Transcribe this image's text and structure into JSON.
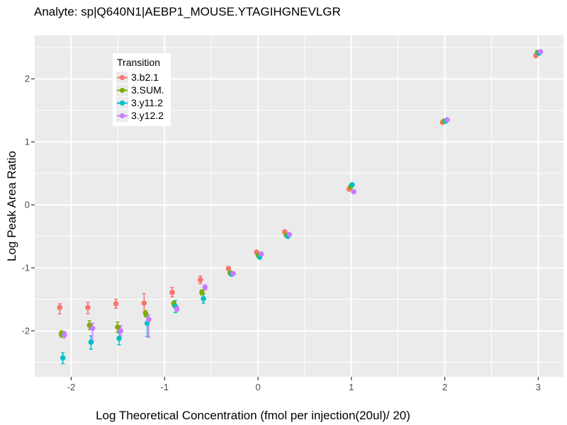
{
  "title": "Analyte: sp|Q640N1|AEBP1_MOUSE.YTAGIHGNEVLGR",
  "chart_data": {
    "type": "scatter",
    "title": "Analyte: sp|Q640N1|AEBP1_MOUSE.YTAGIHGNEVLGR",
    "xlabel": "Log Theoretical Concentration (fmol per injection(20ul)/ 20)",
    "ylabel": "Log Peak Area Ratio",
    "xlim": [
      -2.39,
      3.27
    ],
    "ylim": [
      -2.73,
      2.69
    ],
    "x_ticks": [
      -2,
      -1,
      0,
      1,
      2,
      3
    ],
    "y_ticks": [
      -2,
      -1,
      0,
      1,
      2
    ],
    "grid": "major+minor on, white on gray panel",
    "panel_bg": "#EBEBEB",
    "grid_color": "#FFFFFF",
    "tick_color": "#333333",
    "legend": {
      "title": "Transition",
      "position": "inside-top-left"
    },
    "x": [
      -2.097,
      -1.796,
      -1.495,
      -1.194,
      -0.893,
      -0.592,
      -0.291,
      0.01,
      0.311,
      1.0,
      2.0,
      3.0
    ],
    "series": [
      {
        "name": "3.b2.1",
        "color": "#F8766D",
        "dodge": -0.025,
        "y": [
          -1.63,
          -1.63,
          -1.57,
          -1.56,
          -1.39,
          -1.19,
          -1.01,
          -0.75,
          -0.43,
          0.25,
          1.31,
          2.37
        ],
        "err_lo": [
          -1.73,
          -1.73,
          -1.64,
          -1.7,
          -1.46,
          -1.25,
          -1.04,
          -0.77,
          -0.45,
          0.24,
          1.3,
          2.36
        ],
        "err_hi": [
          -1.57,
          -1.55,
          -1.5,
          -1.41,
          -1.31,
          -1.13,
          -0.98,
          -0.73,
          -0.41,
          0.26,
          1.32,
          2.38
        ]
      },
      {
        "name": "3.SUM.",
        "color": "#7CAE00",
        "dodge": -0.008,
        "y": [
          -2.05,
          -1.91,
          -1.94,
          -1.73,
          -1.57,
          -1.39,
          -1.08,
          -0.8,
          -0.48,
          0.29,
          1.33,
          2.42
        ],
        "err_lo": [
          -2.1,
          -1.98,
          -2.02,
          -1.78,
          -1.61,
          -1.43,
          -1.1,
          -0.82,
          -0.5,
          0.28,
          1.32,
          2.41
        ],
        "err_hi": [
          -2.0,
          -1.84,
          -1.86,
          -1.68,
          -1.53,
          -1.35,
          -1.06,
          -0.78,
          -0.46,
          0.3,
          1.34,
          2.43
        ]
      },
      {
        "name": "3.y11.2",
        "color": "#00BFC4",
        "dodge": 0.008,
        "y": [
          -2.43,
          -2.18,
          -2.12,
          -1.88,
          -1.61,
          -1.49,
          -1.1,
          -0.83,
          -0.5,
          0.32,
          1.33,
          2.41
        ],
        "err_lo": [
          -2.52,
          -2.29,
          -2.22,
          -2.09,
          -1.71,
          -1.56,
          -1.13,
          -0.85,
          -0.52,
          0.31,
          1.32,
          2.4
        ],
        "err_hi": [
          -2.35,
          -2.08,
          -2.03,
          -1.75,
          -1.52,
          -1.42,
          -1.07,
          -0.81,
          -0.48,
          0.33,
          1.34,
          2.42
        ]
      },
      {
        "name": "3.y12.2",
        "color": "#C77CFF",
        "dodge": 0.025,
        "y": [
          -2.06,
          -1.96,
          -2.0,
          -1.82,
          -1.65,
          -1.31,
          -1.09,
          -0.78,
          -0.47,
          0.21,
          1.35,
          2.43
        ],
        "err_lo": [
          -2.11,
          -2.17,
          -2.08,
          -2.1,
          -1.69,
          -1.35,
          -1.11,
          -0.8,
          -0.49,
          0.2,
          1.34,
          2.42
        ],
        "err_hi": [
          -2.01,
          -1.88,
          -1.92,
          -1.75,
          -1.61,
          -1.27,
          -1.07,
          -0.76,
          -0.45,
          0.22,
          1.36,
          2.44
        ]
      }
    ]
  }
}
